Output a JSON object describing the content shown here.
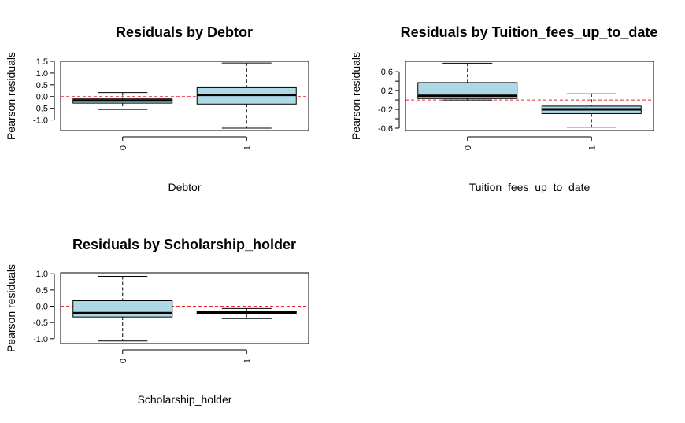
{
  "colors": {
    "box_fill": "#ADD8E6",
    "reference_line": "#E8282B",
    "axis": "#000000"
  },
  "chart_data": [
    {
      "type": "boxplot",
      "title": "Residuals by Debtor",
      "xlabel": "Debtor",
      "ylabel": "Pearson residuals",
      "categories": [
        "0",
        "1"
      ],
      "yticks": [
        -1.0,
        -0.5,
        0.0,
        0.5,
        1.0,
        1.5
      ],
      "ytick_labels": [
        "-1.0",
        "-0.5",
        "0.0",
        "0.5",
        "1.0",
        "1.5"
      ],
      "ylim": [
        -1.45,
        1.5
      ],
      "reference_line": 0,
      "boxes": [
        {
          "whisker_low": -0.55,
          "q1": -0.28,
          "median": -0.17,
          "q3": -0.1,
          "whisker_high": 0.17
        },
        {
          "whisker_low": -1.35,
          "q1": -0.32,
          "median": 0.07,
          "q3": 0.38,
          "whisker_high": 1.43
        }
      ]
    },
    {
      "type": "boxplot",
      "title": "Residuals by Tuition_fees_up_to_date",
      "xlabel": "Tuition_fees_up_to_date",
      "ylabel": "Pearson residuals",
      "categories": [
        "0",
        "1"
      ],
      "yticks": [
        -0.6,
        -0.4,
        -0.2,
        0.0,
        0.2,
        0.4,
        0.6
      ],
      "ytick_labels": [
        "-0.6",
        "",
        "-0.2",
        "",
        "0.2",
        "",
        "0.6"
      ],
      "ylim": [
        -0.65,
        0.82
      ],
      "reference_line": 0,
      "boxes": [
        {
          "whisker_low": 0.0,
          "q1": 0.03,
          "median": 0.09,
          "q3": 0.37,
          "whisker_high": 0.78
        },
        {
          "whisker_low": -0.58,
          "q1": -0.29,
          "median": -0.2,
          "q3": -0.13,
          "whisker_high": 0.13
        }
      ]
    },
    {
      "type": "boxplot",
      "title": "Residuals by Scholarship_holder",
      "xlabel": "Scholarship_holder",
      "ylabel": "Pearson residuals",
      "categories": [
        "0",
        "1"
      ],
      "yticks": [
        -1.0,
        -0.5,
        0.0,
        0.5,
        1.0
      ],
      "ytick_labels": [
        "-1.0",
        "-0.5",
        "0.0",
        "0.5",
        "1.0"
      ],
      "ylim": [
        -1.15,
        1.03
      ],
      "reference_line": 0,
      "boxes": [
        {
          "whisker_low": -1.07,
          "q1": -0.33,
          "median": -0.21,
          "q3": 0.17,
          "whisker_high": 0.92
        },
        {
          "whisker_low": -0.38,
          "q1": -0.24,
          "median": -0.2,
          "q3": -0.16,
          "whisker_high": -0.07
        }
      ]
    }
  ]
}
